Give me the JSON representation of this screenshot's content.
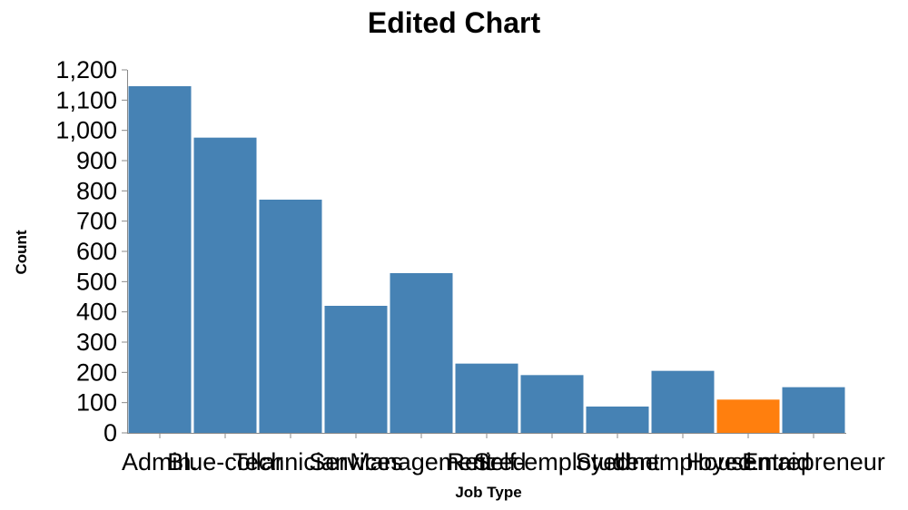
{
  "chart_data": {
    "type": "bar",
    "title": "Edited Chart",
    "xlabel": "Job Type",
    "ylabel": "Count",
    "ylim": [
      0,
      1200
    ],
    "yticks": [
      0,
      100,
      200,
      300,
      400,
      500,
      600,
      700,
      800,
      900,
      1000,
      1100,
      1200
    ],
    "ytick_labels": [
      "0",
      "100",
      "200",
      "300",
      "400",
      "500",
      "600",
      "700",
      "800",
      "900",
      "1,000",
      "1,100",
      "1,200"
    ],
    "categories": [
      "Admin.",
      "Blue-collar",
      "Technician",
      "Services",
      "Management",
      "Retired",
      "Self-employed",
      "Student",
      "Unemployed",
      "Housemaid",
      "Entrepreneur"
    ],
    "values": [
      1146,
      976,
      771,
      420,
      528,
      229,
      191,
      87,
      205,
      110,
      151
    ],
    "colors": [
      "#4682b4",
      "#4682b4",
      "#4682b4",
      "#4682b4",
      "#4682b4",
      "#4682b4",
      "#4682b4",
      "#4682b4",
      "#4682b4",
      "#ff7f0e",
      "#4682b4"
    ],
    "grid": false,
    "legend": "none"
  }
}
